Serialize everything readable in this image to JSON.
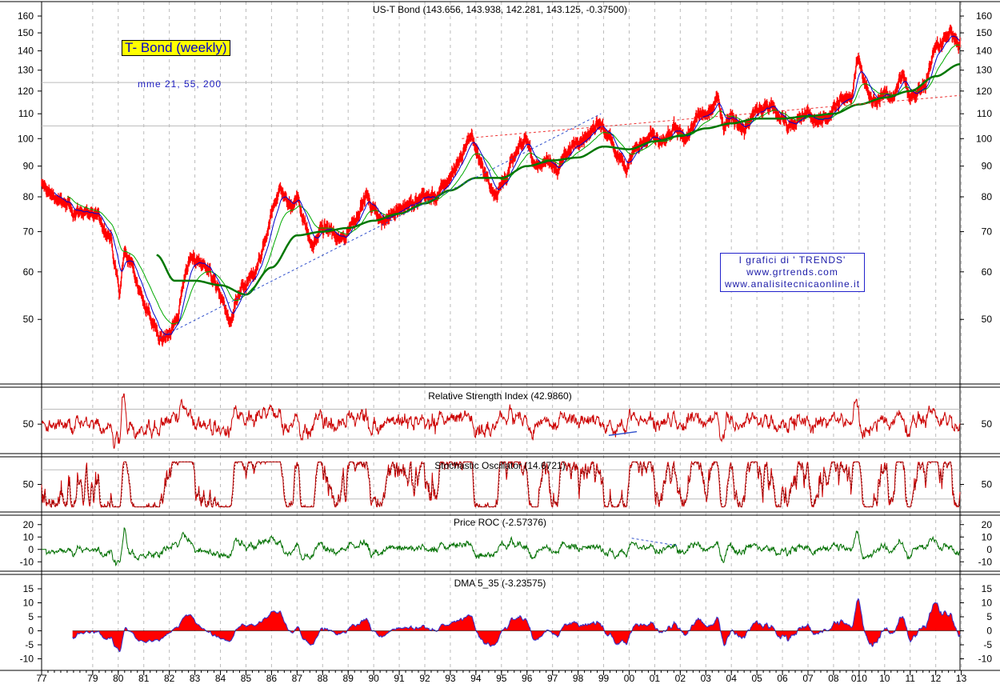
{
  "chart_data": {
    "main": {
      "type": "line",
      "title": "US-T Bond (143.656, 143.938, 142.281, 143.125, -0.37500)",
      "label": "T- Bond (weekly)",
      "ma_label": "mme 21, 55, 200",
      "y_ticks": [
        50,
        60,
        70,
        80,
        90,
        100,
        110,
        120,
        130,
        140,
        150,
        160
      ],
      "ylim": [
        40,
        165
      ],
      "log_scale": true,
      "x_tick_labels": [
        "77",
        "79",
        "80",
        "81",
        "82",
        "83",
        "84",
        "85",
        "86",
        "87",
        "88",
        "89",
        "90",
        "91",
        "92",
        "93",
        "94",
        "95",
        "96",
        "97",
        "98",
        "99",
        "00",
        "01",
        "02",
        "03",
        "04",
        "05",
        "06",
        "07",
        "08",
        "010",
        "10",
        "11",
        "12",
        "13"
      ],
      "x_tick_years": [
        1977,
        1979,
        1980,
        1981,
        1982,
        1983,
        1984,
        1985,
        1986,
        1987,
        1988,
        1989,
        1990,
        1991,
        1992,
        1993,
        1994,
        1995,
        1996,
        1997,
        1998,
        1999,
        2000,
        2001,
        2002,
        2003,
        2004,
        2005,
        2006,
        2007,
        2008,
        2009,
        2010,
        2011,
        2012,
        2013
      ],
      "xlim": [
        1977.0,
        2012.95
      ],
      "price_anchors": [
        [
          1977.0,
          84
        ],
        [
          1977.5,
          80
        ],
        [
          1978.0,
          77
        ],
        [
          1978.5,
          75
        ],
        [
          1978.8,
          76
        ],
        [
          1979.3,
          73
        ],
        [
          1979.7,
          68
        ],
        [
          1980.05,
          55
        ],
        [
          1980.25,
          65
        ],
        [
          1980.5,
          62
        ],
        [
          1980.9,
          55
        ],
        [
          1981.3,
          50
        ],
        [
          1981.6,
          46
        ],
        [
          1981.85,
          47
        ],
        [
          1982.3,
          50
        ],
        [
          1982.7,
          62
        ],
        [
          1983.2,
          63
        ],
        [
          1983.6,
          60
        ],
        [
          1983.9,
          56
        ],
        [
          1984.2,
          52
        ],
        [
          1984.4,
          49
        ],
        [
          1984.7,
          55
        ],
        [
          1985.0,
          57
        ],
        [
          1985.4,
          60
        ],
        [
          1985.8,
          68
        ],
        [
          1986.1,
          78
        ],
        [
          1986.35,
          83
        ],
        [
          1986.7,
          77
        ],
        [
          1987.0,
          80
        ],
        [
          1987.3,
          73
        ],
        [
          1987.6,
          66
        ],
        [
          1987.85,
          70
        ],
        [
          1988.2,
          71
        ],
        [
          1988.6,
          68
        ],
        [
          1989.0,
          70
        ],
        [
          1989.4,
          76
        ],
        [
          1989.7,
          80
        ],
        [
          1990.0,
          76
        ],
        [
          1990.4,
          72
        ],
        [
          1990.8,
          76
        ],
        [
          1991.2,
          77
        ],
        [
          1991.6,
          78
        ],
        [
          1992.0,
          81
        ],
        [
          1992.4,
          79
        ],
        [
          1992.8,
          84
        ],
        [
          1993.3,
          91
        ],
        [
          1993.75,
          101
        ],
        [
          1994.0,
          97
        ],
        [
          1994.4,
          86
        ],
        [
          1994.8,
          81
        ],
        [
          1995.2,
          87
        ],
        [
          1995.7,
          97
        ],
        [
          1996.0,
          100
        ],
        [
          1996.3,
          90
        ],
        [
          1996.8,
          92
        ],
        [
          1997.2,
          89
        ],
        [
          1997.6,
          95
        ],
        [
          1998.0,
          100
        ],
        [
          1998.5,
          101
        ],
        [
          1998.8,
          107
        ],
        [
          1999.1,
          102
        ],
        [
          1999.5,
          95
        ],
        [
          1999.9,
          90
        ],
        [
          2000.2,
          96
        ],
        [
          2000.6,
          99
        ],
        [
          2000.9,
          101
        ],
        [
          2001.3,
          98
        ],
        [
          2001.8,
          103
        ],
        [
          2002.2,
          100
        ],
        [
          2002.7,
          109
        ],
        [
          2003.1,
          110
        ],
        [
          2003.45,
          118
        ],
        [
          2003.7,
          105
        ],
        [
          2004.0,
          110
        ],
        [
          2004.5,
          103
        ],
        [
          2004.9,
          111
        ],
        [
          2005.4,
          115
        ],
        [
          2005.8,
          110
        ],
        [
          2006.2,
          106
        ],
        [
          2006.6,
          107
        ],
        [
          2007.0,
          110
        ],
        [
          2007.5,
          106
        ],
        [
          2007.9,
          111
        ],
        [
          2008.3,
          116
        ],
        [
          2008.7,
          117
        ],
        [
          2008.95,
          138
        ],
        [
          2009.2,
          125
        ],
        [
          2009.5,
          115
        ],
        [
          2009.9,
          118
        ],
        [
          2010.3,
          117
        ],
        [
          2010.7,
          128
        ],
        [
          2010.95,
          118
        ],
        [
          2011.3,
          121
        ],
        [
          2011.6,
          122
        ],
        [
          2011.9,
          140
        ],
        [
          2012.3,
          145
        ],
        [
          2012.6,
          150
        ],
        [
          2012.8,
          147
        ],
        [
          2012.95,
          143
        ]
      ],
      "ema200_anchors": [
        [
          1981.5,
          64
        ],
        [
          1982.2,
          58
        ],
        [
          1983.0,
          58
        ],
        [
          1984.0,
          57
        ],
        [
          1985.0,
          55
        ],
        [
          1986.0,
          61
        ],
        [
          1987.0,
          69
        ],
        [
          1988.0,
          70
        ],
        [
          1989.0,
          71
        ],
        [
          1990.0,
          73
        ],
        [
          1991.0,
          75
        ],
        [
          1992.0,
          78
        ],
        [
          1993.0,
          82
        ],
        [
          1994.0,
          86
        ],
        [
          1995.0,
          86
        ],
        [
          1996.0,
          90
        ],
        [
          1997.0,
          92
        ],
        [
          1998.0,
          93
        ],
        [
          1999.0,
          97
        ],
        [
          2000.0,
          96
        ],
        [
          2001.0,
          99
        ],
        [
          2002.0,
          101
        ],
        [
          2003.0,
          104
        ],
        [
          2004.0,
          106
        ],
        [
          2005.0,
          108
        ],
        [
          2006.0,
          108
        ],
        [
          2007.0,
          109
        ],
        [
          2008.0,
          110
        ],
        [
          2009.0,
          114
        ],
        [
          2010.0,
          117
        ],
        [
          2011.0,
          120
        ],
        [
          2012.0,
          127
        ],
        [
          2012.95,
          133
        ]
      ],
      "support_line": [
        [
          1981.6,
          46.5
        ],
        [
          1998.9,
          110
        ]
      ],
      "resistance_line": [
        [
          1993.45,
          100
        ],
        [
          2012.95,
          118
        ]
      ],
      "horizontal_lines": [
        124,
        105
      ]
    },
    "rsi": {
      "title": "Relative Strength Index (42.9860)",
      "y_ticks": [
        50
      ],
      "ylim": [
        15,
        95
      ],
      "ref_lines": [
        70,
        30
      ],
      "trend_line": [
        [
          1999.2,
          35
        ],
        [
          2000.3,
          40
        ]
      ]
    },
    "stochastic": {
      "title": "Stochastic Oscillator (14.6721)",
      "y_ticks": [
        50
      ],
      "ylim": [
        0,
        100
      ],
      "ref_lines": [
        80,
        20
      ]
    },
    "roc": {
      "title": "Price ROC (-2.57376)",
      "y_ticks": [
        20,
        10,
        0,
        -10
      ],
      "ylim": [
        -15,
        25
      ],
      "trend_line": [
        [
          2000.1,
          9
        ],
        [
          2001.9,
          3
        ]
      ]
    },
    "dma": {
      "title": "DMA 5_35 (-3.23575)",
      "y_ticks": [
        15,
        10,
        5,
        0,
        -5,
        -10
      ],
      "ylim": [
        -13,
        19
      ]
    }
  },
  "overlay": {
    "trends_lines": [
      "I grafici di ' TRENDS'",
      "www.grtrends.com",
      "www.analisitecnicaonline.it"
    ]
  },
  "colors": {
    "price": "#ff0000",
    "ema_short": "#0000cc",
    "ema_mid": "#00aa00",
    "ema_long": "#007700",
    "rsi": "#cc0000",
    "stoch_k": "#cc0000",
    "stoch_d": "#800000",
    "roc": "#007000",
    "dma_fill": "#ff0000",
    "dma_line": "#3030cc",
    "support": "#3050cc",
    "resistance": "#ee3333",
    "grid": "#bbbbbb",
    "hline": "#bbbbbb"
  }
}
